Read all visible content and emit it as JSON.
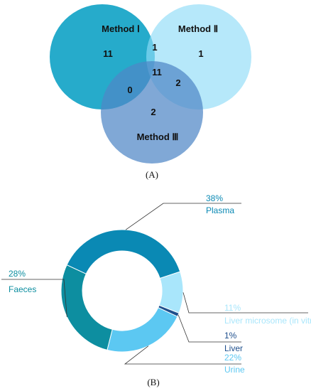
{
  "chart_data": [
    {
      "type": "venn",
      "panel_label": "(A)",
      "sets": [
        {
          "name": "Method Ⅰ",
          "color": "#1aa6c8"
        },
        {
          "name": "Method Ⅱ",
          "color": "#8fdbf7"
        },
        {
          "name": "Method Ⅲ",
          "color": "#5b8fc9"
        }
      ],
      "regions": {
        "only_1": 11,
        "only_2": 1,
        "only_3": 2,
        "1_and_2": 1,
        "1_and_3": 0,
        "2_and_3": 2,
        "all": 11
      }
    },
    {
      "type": "pie",
      "style": "donut",
      "panel_label": "(B)",
      "slices": [
        {
          "label": "Plasma",
          "percent": "38%",
          "value": 38,
          "color": "#0a89b4"
        },
        {
          "label": "Liver microsome (in vitro)",
          "percent": "11%",
          "value": 11,
          "color": "#a9e6fb"
        },
        {
          "label": "Liver",
          "percent": "1%",
          "value": 1,
          "color": "#1e4f8c"
        },
        {
          "label": "Urine",
          "percent": "22%",
          "value": 22,
          "color": "#5cc8f2"
        },
        {
          "label": "Faeces",
          "percent": "28%",
          "value": 28,
          "color": "#0d8ea0"
        }
      ]
    }
  ]
}
